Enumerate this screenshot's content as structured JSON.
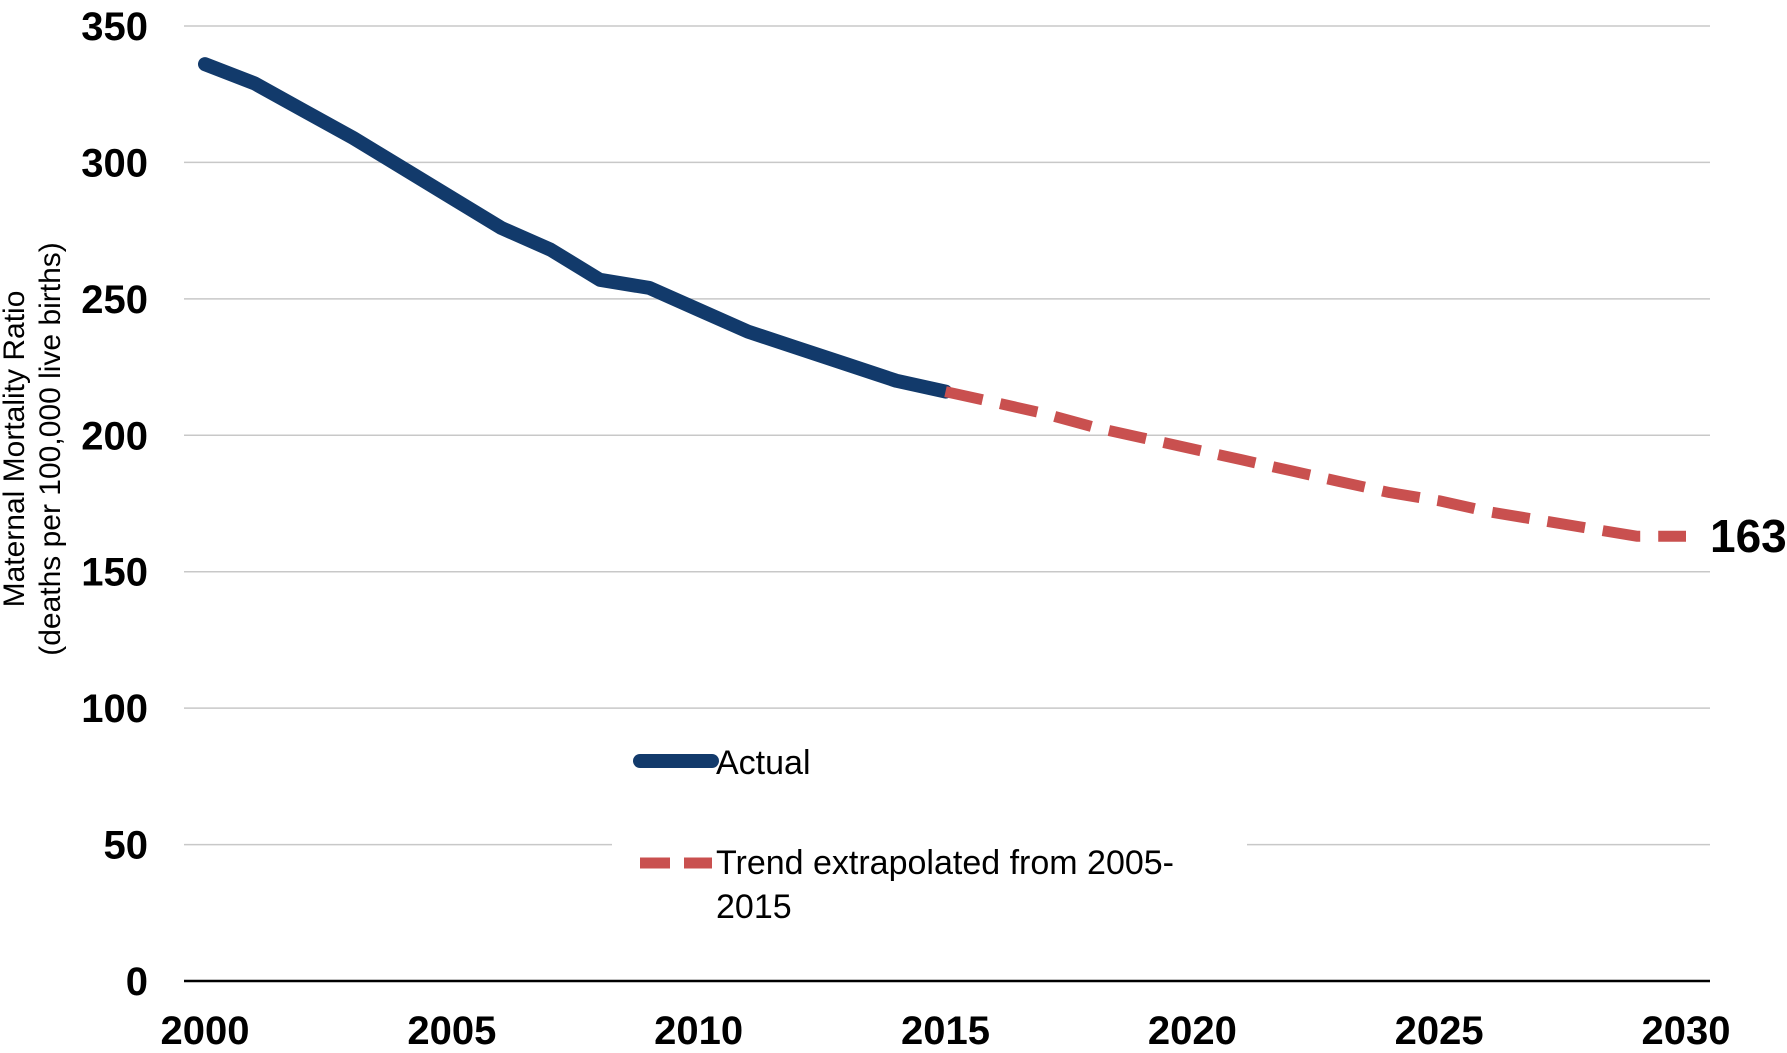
{
  "chart_data": {
    "type": "line",
    "title": "",
    "xlabel": "",
    "ylabel": [
      "Maternal Mortality Ratio",
      "(deaths per 100,000 live births)"
    ],
    "xlim": [
      2000,
      2030
    ],
    "ylim": [
      0,
      350
    ],
    "x_ticks": [
      "2000",
      "2005",
      "2010",
      "2015",
      "2020",
      "2025",
      "2030"
    ],
    "y_ticks": [
      "0",
      "50",
      "100",
      "150",
      "200",
      "250",
      "300",
      "350"
    ],
    "grid": "horizontal",
    "legend_position": "center-bottom",
    "series": [
      {
        "name": "Actual",
        "color": "#123A6B",
        "style": "solid",
        "x": [
          2000,
          2001,
          2002,
          2003,
          2004,
          2005,
          2006,
          2007,
          2008,
          2009,
          2010,
          2011,
          2012,
          2013,
          2014,
          2015
        ],
        "y": [
          336,
          329,
          319,
          309,
          298,
          287,
          276,
          268,
          257,
          254,
          246,
          238,
          232,
          226,
          220,
          216
        ]
      },
      {
        "name": "Trend extrapolated from 2005-2015",
        "color": "#C9504F",
        "style": "dashed",
        "x": [
          2015,
          2016,
          2017,
          2018,
          2019,
          2020,
          2021,
          2022,
          2023,
          2024,
          2025,
          2026,
          2027,
          2028,
          2029,
          2030
        ],
        "y": [
          216,
          212,
          208,
          203,
          199,
          195,
          191,
          187,
          183,
          179,
          176,
          172,
          169,
          166,
          163,
          163
        ]
      }
    ],
    "annotations": [
      {
        "text": "163",
        "x": 2030,
        "y": 163
      }
    ]
  },
  "legend": {
    "items": [
      {
        "line1": "Actual",
        "line2": ""
      },
      {
        "line1": "Trend extrapolated from 2005-",
        "line2": "2015"
      }
    ]
  }
}
